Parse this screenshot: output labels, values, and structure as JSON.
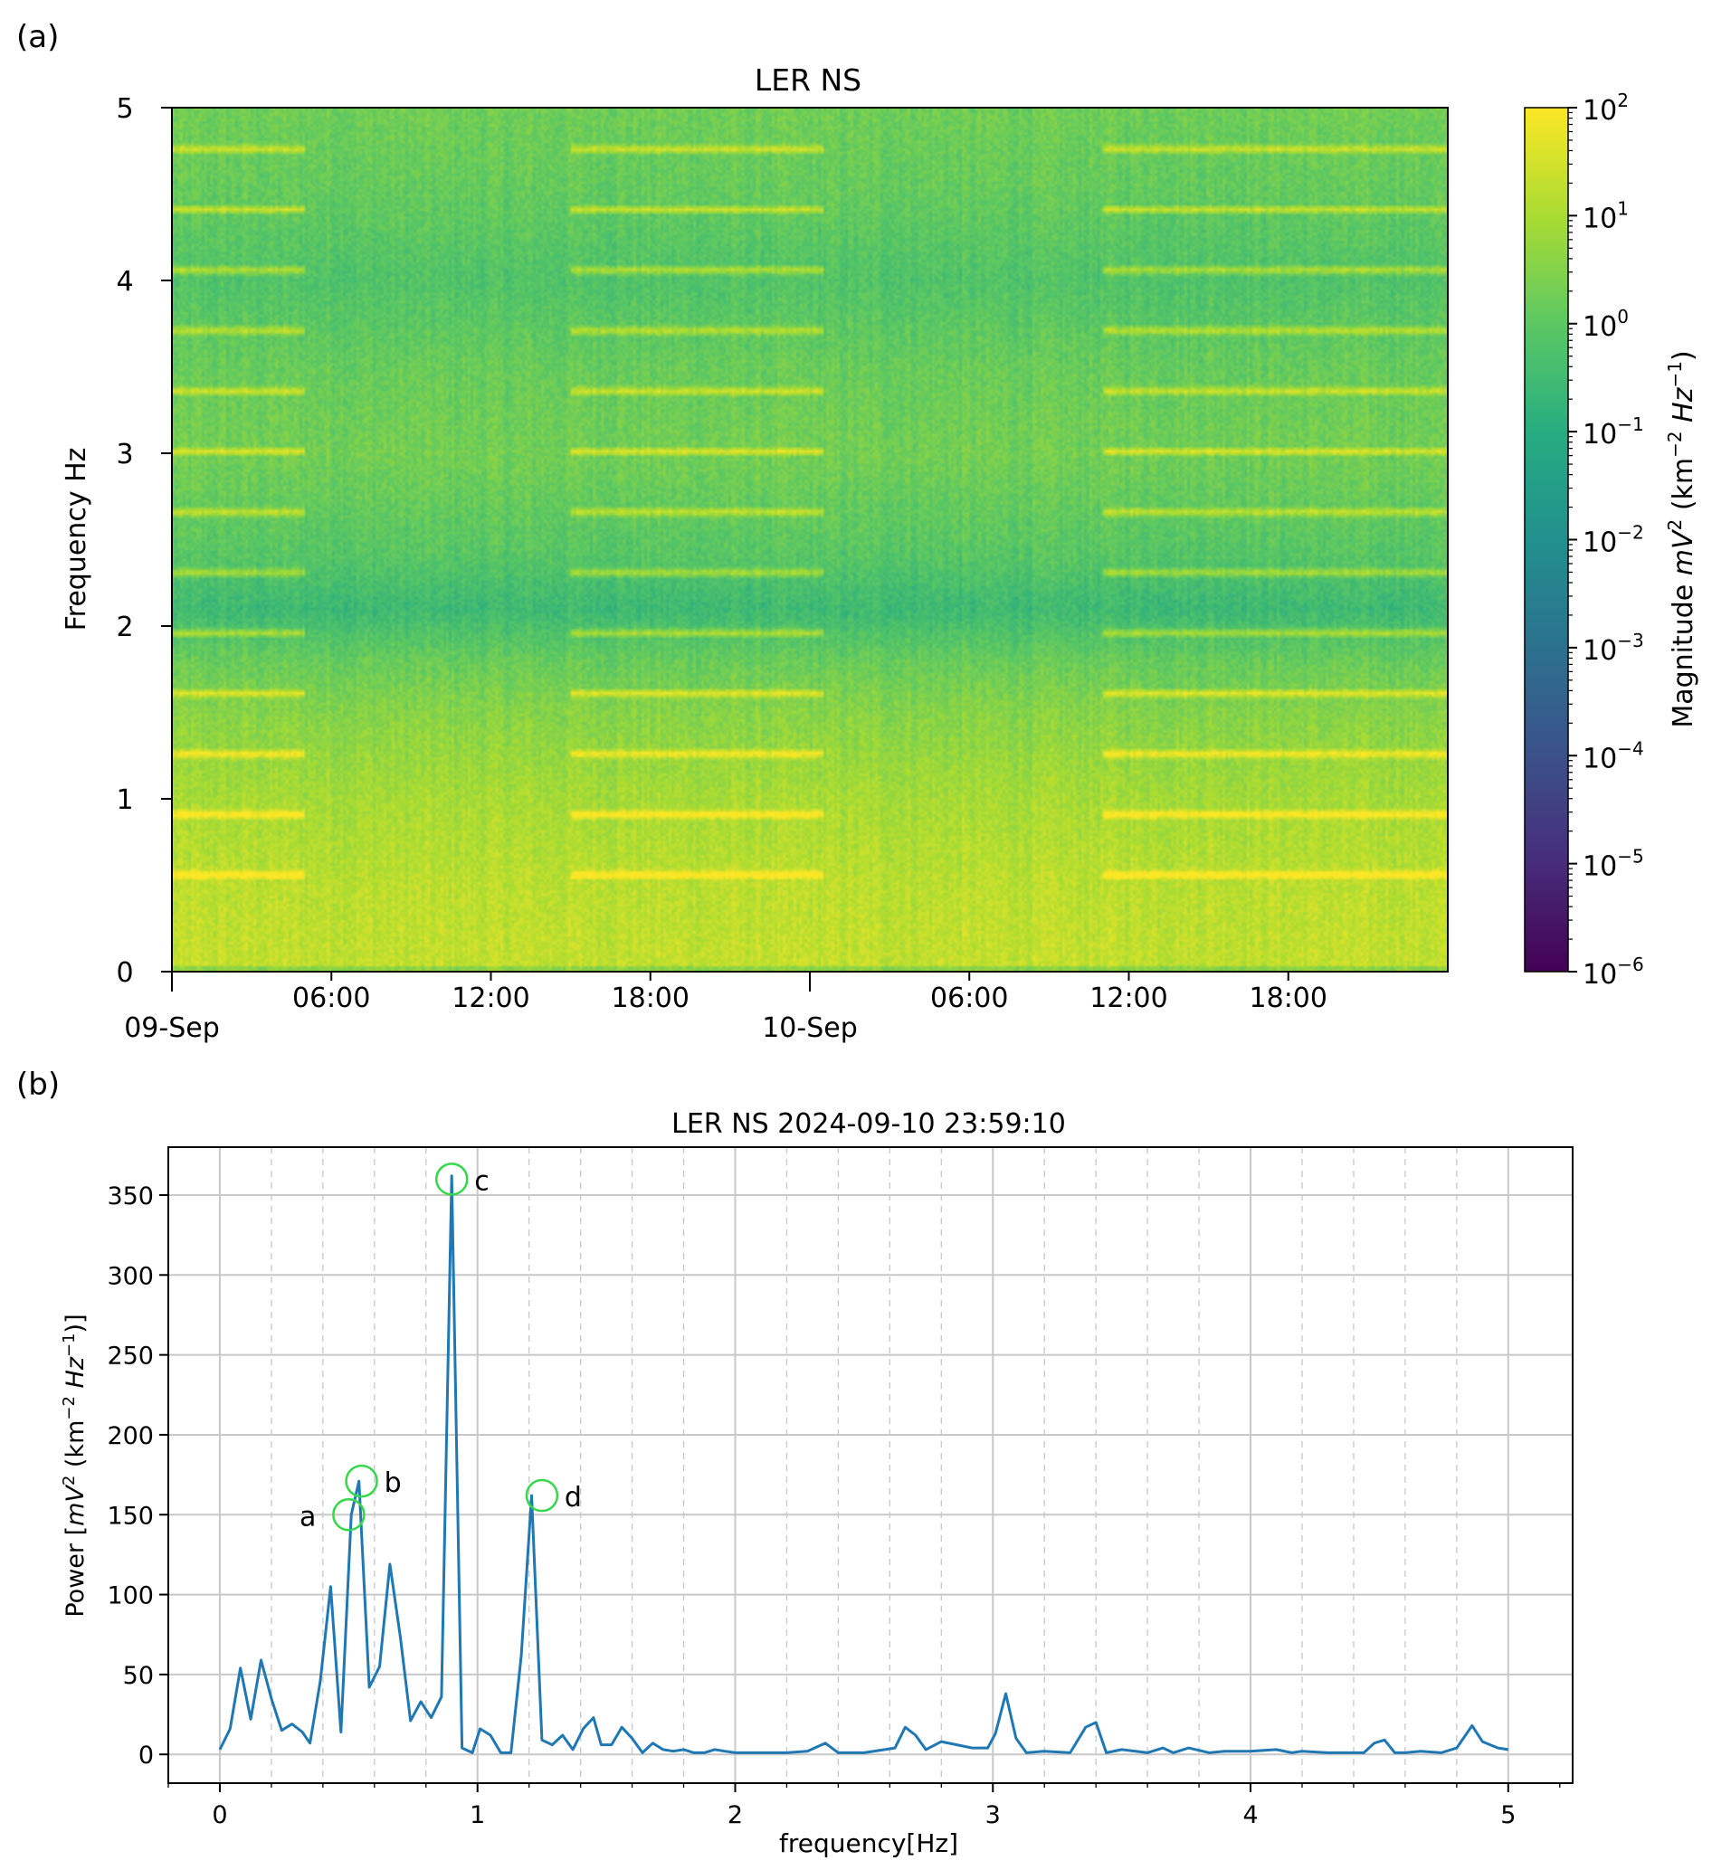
{
  "panel_labels": {
    "a": "(a)",
    "b": "(b)"
  },
  "colors": {
    "line": "#1f77b4",
    "marker": "#35d84a",
    "grid": "#c8c8c8",
    "colormap": [
      "#440154",
      "#472c7a",
      "#3b518b",
      "#2c718e",
      "#21908d",
      "#27ad81",
      "#5cc863",
      "#aadc32",
      "#fde725"
    ]
  },
  "chart_data": [
    {
      "type": "heatmap",
      "title": "LER NS",
      "ylabel": "Frequency Hz",
      "ylim": [
        0,
        5
      ],
      "yticks": [
        "0",
        "1",
        "2",
        "3",
        "4",
        "5"
      ],
      "xticks_major": [
        {
          "t": 0,
          "label": "09-Sep"
        },
        {
          "t": 24,
          "label": "10-Sep"
        }
      ],
      "xticks_minor": [
        {
          "t": 6,
          "label": "06:00"
        },
        {
          "t": 12,
          "label": "12:00"
        },
        {
          "t": 18,
          "label": "18:00"
        },
        {
          "t": 30,
          "label": "06:00"
        },
        {
          "t": 36,
          "label": "12:00"
        },
        {
          "t": 42,
          "label": "18:00"
        }
      ],
      "time_range_hours": [
        0,
        48
      ],
      "colorbar": {
        "label": "Magnitude mV² (km⁻² Hz⁻¹)",
        "label_prefix": "Magnitude ",
        "label_unit": "mV",
        "label_unit_exp": "2",
        "label_paren_open": " (km",
        "label_km_exp": "−2",
        "label_hz": " Hz",
        "label_hz_exp": "−1",
        "label_paren_close": ")",
        "scale": "log",
        "range_exp": [
          -6,
          2
        ],
        "ticks": [
          {
            "base": "10",
            "exp": "2"
          },
          {
            "base": "10",
            "exp": "1"
          },
          {
            "base": "10",
            "exp": "0"
          },
          {
            "base": "10",
            "exp": "−1"
          },
          {
            "base": "10",
            "exp": "−2"
          },
          {
            "base": "10",
            "exp": "−3"
          },
          {
            "base": "10",
            "exp": "−4"
          },
          {
            "base": "10",
            "exp": "−5"
          },
          {
            "base": "10",
            "exp": "−6"
          }
        ]
      },
      "band_profile_log10": [
        {
          "f": 0.0,
          "v": 1.3
        },
        {
          "f": 0.5,
          "v": 1.2
        },
        {
          "f": 1.0,
          "v": 0.95
        },
        {
          "f": 1.5,
          "v": 0.55
        },
        {
          "f": 1.8,
          "v": 0.15
        },
        {
          "f": 2.1,
          "v": -0.55
        },
        {
          "f": 2.4,
          "v": -0.1
        },
        {
          "f": 3.0,
          "v": 0.3
        },
        {
          "f": 3.5,
          "v": 0.15
        },
        {
          "f": 4.0,
          "v": -0.2
        },
        {
          "f": 4.5,
          "v": 0.1
        },
        {
          "f": 5.0,
          "v": 0.25
        }
      ],
      "harmonic_lines_hz": [
        0.56,
        0.91,
        1.26,
        1.61,
        1.96,
        2.31,
        2.66,
        3.01,
        3.36,
        3.71,
        4.06,
        4.41,
        4.76
      ],
      "harmonic_active_intervals_hours": [
        [
          0,
          5
        ],
        [
          15,
          24.5
        ],
        [
          35,
          48
        ]
      ]
    },
    {
      "type": "line",
      "title": "LER NS 2024-09-10 23:59:10",
      "xlabel": "frequency[Hz]",
      "ylabel": "Power [mV² (km⁻² Hz⁻¹)]",
      "ylabel_prefix": "Power [",
      "ylabel_unit": "mV",
      "ylabel_unit_exp": "2",
      "ylabel_paren_open": " (km",
      "ylabel_km_exp": "−2",
      "ylabel_hz": " Hz",
      "ylabel_hz_exp": "−1",
      "ylabel_close": ")]",
      "xlim": [
        -0.2,
        5.25
      ],
      "ylim": [
        -18,
        380
      ],
      "xticks": [
        0,
        1,
        2,
        3,
        4,
        5
      ],
      "yticks": [
        0,
        50,
        100,
        150,
        200,
        250,
        300,
        350
      ],
      "minor_xtick_step": 0.2,
      "grid": true,
      "series": [
        {
          "name": "LER NS",
          "x": [
            0.0,
            0.04,
            0.08,
            0.12,
            0.16,
            0.2,
            0.24,
            0.28,
            0.32,
            0.35,
            0.39,
            0.43,
            0.47,
            0.51,
            0.54,
            0.58,
            0.62,
            0.66,
            0.7,
            0.74,
            0.78,
            0.82,
            0.86,
            0.9,
            0.94,
            0.98,
            1.01,
            1.05,
            1.09,
            1.13,
            1.17,
            1.21,
            1.25,
            1.29,
            1.33,
            1.37,
            1.41,
            1.45,
            1.48,
            1.52,
            1.56,
            1.6,
            1.64,
            1.68,
            1.72,
            1.76,
            1.8,
            1.84,
            1.88,
            1.92,
            1.96,
            2.0,
            2.1,
            2.2,
            2.28,
            2.35,
            2.4,
            2.5,
            2.58,
            2.62,
            2.66,
            2.7,
            2.74,
            2.8,
            2.86,
            2.92,
            2.98,
            3.01,
            3.05,
            3.09,
            3.13,
            3.2,
            3.3,
            3.36,
            3.4,
            3.44,
            3.5,
            3.6,
            3.66,
            3.7,
            3.76,
            3.84,
            3.9,
            4.0,
            4.1,
            4.16,
            4.2,
            4.3,
            4.4,
            4.44,
            4.48,
            4.52,
            4.56,
            4.6,
            4.66,
            4.74,
            4.8,
            4.86,
            4.9,
            4.96,
            5.0
          ],
          "values": [
            3,
            16,
            54,
            22,
            59,
            35,
            15,
            19,
            14,
            7,
            46,
            105,
            14,
            150,
            171,
            42,
            55,
            119,
            74,
            21,
            33,
            23,
            36,
            362,
            4,
            1,
            16,
            12,
            1,
            1,
            62,
            162,
            9,
            6,
            12,
            3,
            16,
            23,
            6,
            6,
            17,
            10,
            1,
            7,
            3,
            2,
            3,
            1,
            1,
            3,
            2,
            1,
            1,
            1,
            2,
            7,
            1,
            1,
            3,
            4,
            17,
            12,
            3,
            8,
            6,
            4,
            4,
            13,
            38,
            10,
            1,
            2,
            1,
            17,
            20,
            1,
            3,
            1,
            4,
            1,
            4,
            1,
            2,
            2,
            3,
            1,
            2,
            1,
            1,
            1,
            7,
            9,
            1,
            1,
            2,
            1,
            4,
            18,
            8,
            4,
            3
          ]
        }
      ],
      "annotations": [
        {
          "label": "a",
          "x": 0.5,
          "y": 150
        },
        {
          "label": "b",
          "x": 0.55,
          "y": 171
        },
        {
          "label": "c",
          "x": 0.9,
          "y": 360
        },
        {
          "label": "d",
          "x": 1.25,
          "y": 162
        }
      ]
    }
  ]
}
